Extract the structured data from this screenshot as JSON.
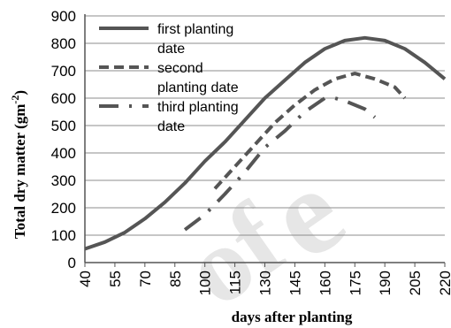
{
  "chart_data": {
    "type": "line",
    "title": "",
    "xlabel": "days after planting",
    "ylabel": "Total dry matter (gm",
    "ylabel_sup": "-2",
    "ylabel_close": ")",
    "xlim": [
      40,
      220
    ],
    "ylim": [
      0,
      900
    ],
    "x_ticks": [
      "40",
      "55",
      "70",
      "85",
      "100",
      "115",
      "130",
      "145",
      "160",
      "175",
      "190",
      "205",
      "220"
    ],
    "y_ticks": [
      "0",
      "100",
      "200",
      "300",
      "400",
      "500",
      "600",
      "700",
      "800",
      "900"
    ],
    "grid": "horizontal",
    "legend_position": "top-left",
    "series": [
      {
        "name_lines": [
          "first planting",
          "date"
        ],
        "style": "solid",
        "color": "#555555",
        "points": [
          [
            40,
            50
          ],
          [
            50,
            75
          ],
          [
            60,
            110
          ],
          [
            70,
            160
          ],
          [
            80,
            220
          ],
          [
            90,
            290
          ],
          [
            100,
            370
          ],
          [
            110,
            440
          ],
          [
            120,
            520
          ],
          [
            130,
            600
          ],
          [
            140,
            665
          ],
          [
            150,
            730
          ],
          [
            160,
            780
          ],
          [
            170,
            810
          ],
          [
            180,
            820
          ],
          [
            190,
            810
          ],
          [
            200,
            780
          ],
          [
            210,
            730
          ],
          [
            220,
            670
          ]
        ]
      },
      {
        "name_lines": [
          "second",
          "planting date"
        ],
        "style": "dashed",
        "color": "#555555",
        "points": [
          [
            105,
            270
          ],
          [
            115,
            350
          ],
          [
            125,
            430
          ],
          [
            135,
            510
          ],
          [
            145,
            575
          ],
          [
            155,
            630
          ],
          [
            165,
            670
          ],
          [
            175,
            690
          ],
          [
            185,
            670
          ],
          [
            195,
            640
          ],
          [
            200,
            600
          ]
        ]
      },
      {
        "name_lines": [
          "third planting",
          "date"
        ],
        "style": "dashdot",
        "color": "#555555",
        "points": [
          [
            90,
            120
          ],
          [
            100,
            175
          ],
          [
            110,
            250
          ],
          [
            120,
            330
          ],
          [
            130,
            420
          ],
          [
            140,
            480
          ],
          [
            150,
            550
          ],
          [
            160,
            600
          ],
          [
            165,
            600
          ],
          [
            170,
            590
          ],
          [
            180,
            560
          ],
          [
            185,
            530
          ]
        ]
      }
    ]
  }
}
